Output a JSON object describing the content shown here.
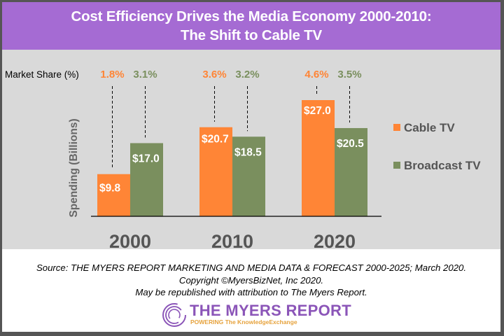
{
  "header": {
    "title_line1": "Cost Efficiency Drives the Media Economy 2000-2010:",
    "title_line2": "The Shift to Cable TV"
  },
  "colors": {
    "header_bg": "#A56BD3",
    "chart_bg": "#D9D9D9",
    "cable": "#FF8536",
    "broadcast": "#7A8F5E",
    "frame": "#555555",
    "logo_purple": "#8B55B8",
    "logo_orange": "#E6A23C"
  },
  "chart_data": {
    "type": "bar",
    "title": "Cost Efficiency Drives the Media Economy 2000-2010: The Shift to Cable TV",
    "xlabel": "",
    "ylabel": "Spending (Billions)",
    "categories": [
      "2000",
      "2010",
      "2020"
    ],
    "series": [
      {
        "name": "Cable TV",
        "values": [
          9.8,
          20.7,
          27.0
        ],
        "value_labels": [
          "$9.8",
          "$20.7",
          "$27.0"
        ],
        "market_share": [
          "1.8%",
          "3.6%",
          "4.6%"
        ]
      },
      {
        "name": "Broadcast TV",
        "values": [
          17.0,
          18.5,
          20.5
        ],
        "value_labels": [
          "$17.0",
          "$18.5",
          "$20.5"
        ],
        "market_share": [
          "3.1%",
          "3.2%",
          "3.5%"
        ]
      }
    ],
    "market_share_title": "Market Share (%)",
    "ylim": [
      0,
      27
    ],
    "grid": false,
    "legend": "right",
    "legend_entries": [
      "Cable TV",
      "Broadcast TV"
    ]
  },
  "footer": {
    "source": "Source: THE MYERS REPORT MARKETING AND MEDIA DATA & FORECAST 2000-2025; March 2020.",
    "copyright": "Copyright ©MyersBizNet, Inc 2020.",
    "attribution": "May be republished with attribution to The Myers Report.",
    "logo_title": "THE MYERS REPORT",
    "logo_tagline": "POWERING The KnowledgeExchange",
    "logo_icon": "concentric-circles-logo-icon"
  }
}
